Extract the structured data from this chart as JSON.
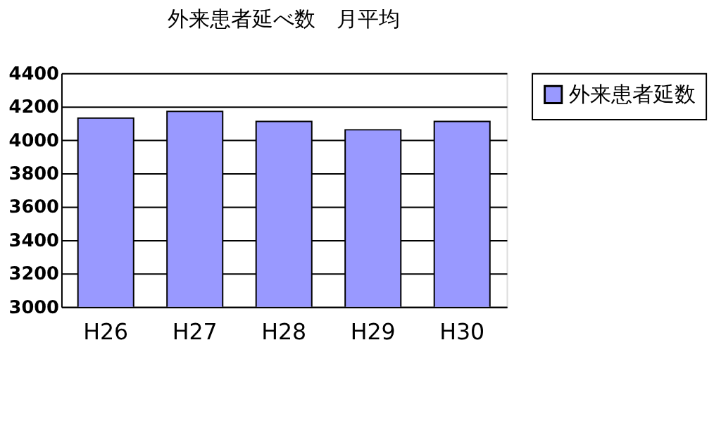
{
  "chart_data": {
    "type": "bar",
    "title": "外来患者延べ数　月平均",
    "categories": [
      "H26",
      "H27",
      "H28",
      "H29",
      "H30"
    ],
    "series": [
      {
        "name": "外来患者延数",
        "color": "#9999ff",
        "values": [
          4130,
          4170,
          4110,
          4060,
          4110
        ]
      }
    ],
    "ylim": [
      3000,
      4400
    ],
    "yticks": [
      3000,
      3200,
      3400,
      3600,
      3800,
      4000,
      4200,
      4400
    ],
    "grid": "y",
    "legend": "right"
  }
}
